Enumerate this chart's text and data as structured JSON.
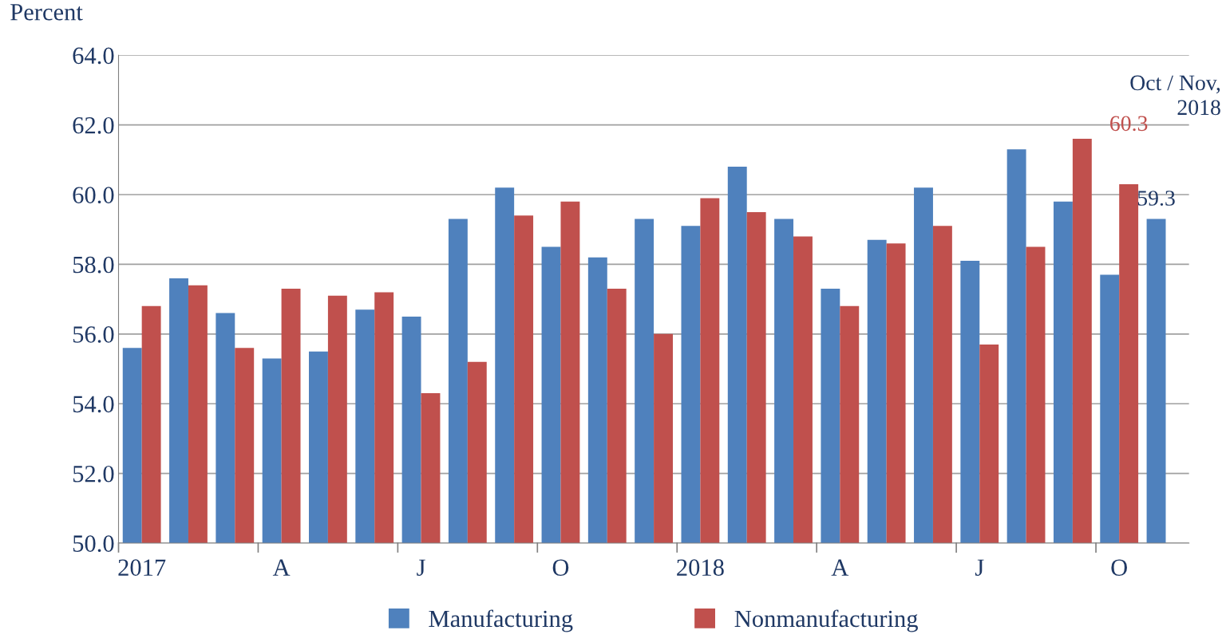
{
  "chart_data": {
    "type": "bar",
    "ylabel": "Percent",
    "categories": [
      "2017",
      null,
      null,
      "A",
      null,
      null,
      "J",
      null,
      null,
      "O",
      null,
      null,
      "2018",
      null,
      null,
      "A",
      null,
      null,
      "J",
      null,
      null,
      "O",
      null
    ],
    "series": [
      {
        "name": "Manufacturing",
        "color": "#4f81bd",
        "values": [
          55.6,
          57.6,
          56.6,
          55.3,
          55.5,
          56.7,
          56.5,
          59.3,
          60.2,
          58.5,
          58.2,
          59.3,
          59.1,
          60.8,
          59.3,
          57.3,
          58.7,
          60.2,
          58.1,
          61.3,
          59.8,
          57.7,
          59.3
        ],
        "value_labels": [
          null,
          null,
          null,
          null,
          null,
          null,
          null,
          null,
          null,
          null,
          null,
          null,
          null,
          null,
          null,
          null,
          null,
          null,
          null,
          null,
          null,
          null,
          "59.3"
        ]
      },
      {
        "name": "Nonmanufacturing",
        "color": "#c0504d",
        "values": [
          56.8,
          57.4,
          55.6,
          57.3,
          57.1,
          57.2,
          54.3,
          55.2,
          59.4,
          59.8,
          57.3,
          56.0,
          59.9,
          59.5,
          58.8,
          56.8,
          58.6,
          59.1,
          55.7,
          58.5,
          61.6,
          60.3,
          null
        ],
        "value_labels": [
          null,
          null,
          null,
          null,
          null,
          null,
          null,
          null,
          null,
          null,
          null,
          null,
          null,
          null,
          null,
          null,
          null,
          null,
          null,
          null,
          null,
          "60.3",
          null
        ]
      }
    ],
    "ylim": [
      50,
      64
    ],
    "yticks": [
      {
        "value": 50,
        "label": "50.0"
      },
      {
        "value": 52,
        "label": "52.0"
      },
      {
        "value": 54,
        "label": "54.0"
      },
      {
        "value": 56,
        "label": "56.0"
      },
      {
        "value": 58,
        "label": "58.0"
      },
      {
        "value": 60,
        "label": "60.0"
      },
      {
        "value": 62,
        "label": "62.0"
      },
      {
        "value": 64,
        "label": "64.0"
      }
    ],
    "grid": "y",
    "legend": "bottom",
    "annotations": [
      "Oct / Nov,\n2018"
    ]
  }
}
